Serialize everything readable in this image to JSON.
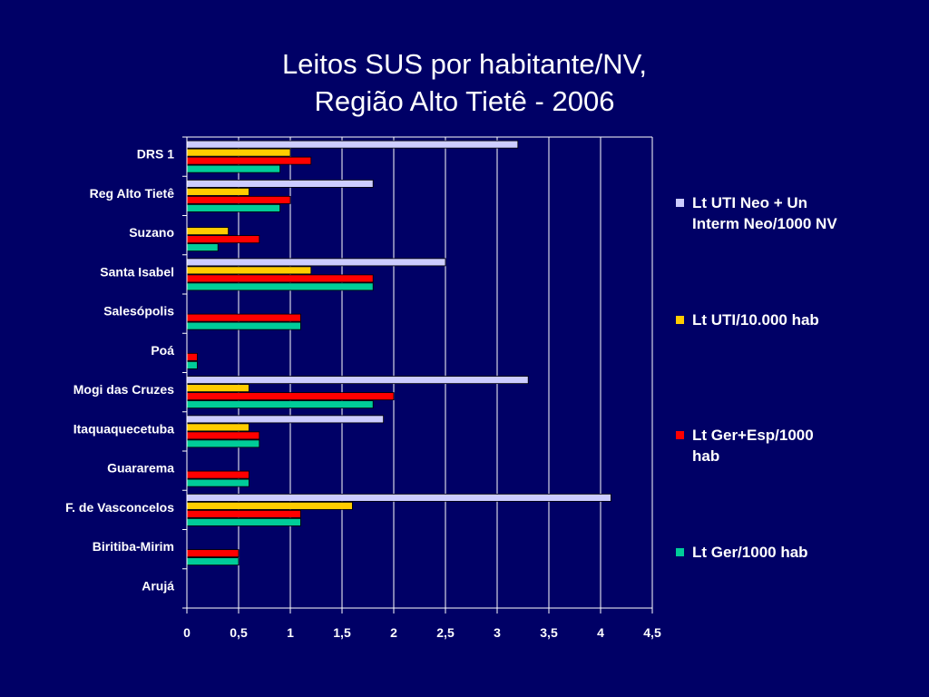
{
  "chart_data": {
    "type": "bar",
    "orientation": "horizontal",
    "title": "Leitos SUS por habitante/NV,",
    "subtitle": "Região Alto Tietê - 2006",
    "categories": [
      "DRS 1",
      "Reg Alto Tietê",
      "Suzano",
      "Santa Isabel",
      "Salesópolis",
      "Poá",
      "Mogi das Cruzes",
      "Itaquaquecetuba",
      "Guararema",
      "F. de Vasconcelos",
      "Biritiba-Mirim",
      "Arujá"
    ],
    "series": [
      {
        "name": "Lt UTI Neo + Un Interm Neo/1000 NV",
        "color": "#ccccff",
        "values": [
          3.2,
          1.8,
          0,
          2.5,
          0,
          0,
          3.3,
          1.9,
          0,
          4.1,
          0,
          0
        ]
      },
      {
        "name": "Lt UTI/10.000 hab",
        "color": "#ffcc00",
        "values": [
          1.0,
          0.6,
          0.4,
          1.2,
          0,
          0,
          0.6,
          0.6,
          0,
          1.6,
          0,
          0
        ]
      },
      {
        "name": "Lt Ger+Esp/1000 hab",
        "color": "#ff0000",
        "values": [
          1.2,
          1.0,
          0.7,
          1.8,
          1.1,
          0.1,
          2.0,
          0.7,
          0.6,
          1.1,
          0.5,
          0
        ]
      },
      {
        "name": "Lt Ger/1000 hab",
        "color": "#00cc99",
        "values": [
          0.9,
          0.9,
          0.3,
          1.8,
          1.1,
          0.1,
          1.8,
          0.7,
          0.6,
          1.1,
          0.5,
          0
        ]
      }
    ],
    "x_ticks": [
      "0",
      "0,5",
      "1",
      "1,5",
      "2",
      "2,5",
      "3",
      "3,5",
      "4",
      "4,5"
    ],
    "xlim": [
      0,
      4.5
    ],
    "grid": true,
    "legend_position": "right"
  }
}
